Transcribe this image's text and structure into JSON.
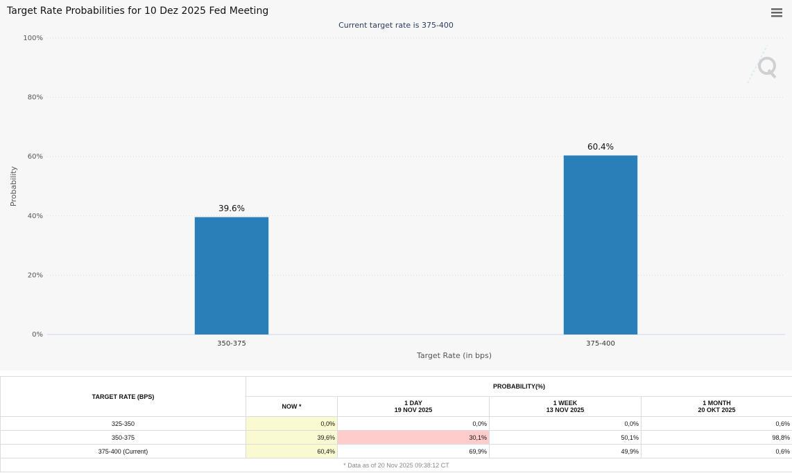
{
  "chart_data": {
    "type": "bar",
    "title": "Target Rate Probabilities for 10 Dez 2025 Fed Meeting",
    "subtitle": "Current target rate is 375-400",
    "x_label": "Target Rate (in bps)",
    "y_label": "Probability",
    "categories": [
      "350-375",
      "375-400"
    ],
    "values": [
      39.6,
      60.4
    ],
    "value_labels": [
      "39.6%",
      "60.4%"
    ],
    "color": "#2b7fb8",
    "ylim": [
      0,
      100
    ],
    "yticks": [
      {
        "value": 0,
        "label": "0%"
      },
      {
        "value": 20,
        "label": "20%"
      },
      {
        "value": 40,
        "label": "40%"
      },
      {
        "value": 60,
        "label": "60%"
      },
      {
        "value": 80,
        "label": "80%"
      },
      {
        "value": 100,
        "label": "100%"
      }
    ],
    "grid": true
  },
  "table": {
    "rate_header": "TARGET RATE (BPS)",
    "prob_header": "PROBABILITY(%)",
    "columns": [
      {
        "label": "NOW *"
      },
      {
        "label": "1 DAY",
        "date": "19 NOV 2025"
      },
      {
        "label": "1 WEEK",
        "date": "13 NOV 2025"
      },
      {
        "label": "1 MONTH",
        "date": "20 OKT 2025"
      }
    ],
    "rows": [
      [
        "325-350",
        "0,0%",
        "0,0%",
        "0,0%",
        "0,6%"
      ],
      [
        "350-375",
        "39,6%",
        "30,1%",
        "50,1%",
        "98,8%"
      ],
      [
        "375-400 (Current)",
        "60,4%",
        "69,9%",
        "49,9%",
        "0,6%"
      ]
    ],
    "footnote": "* Data as of 20 Nov 2025 09:38:12 CT"
  }
}
